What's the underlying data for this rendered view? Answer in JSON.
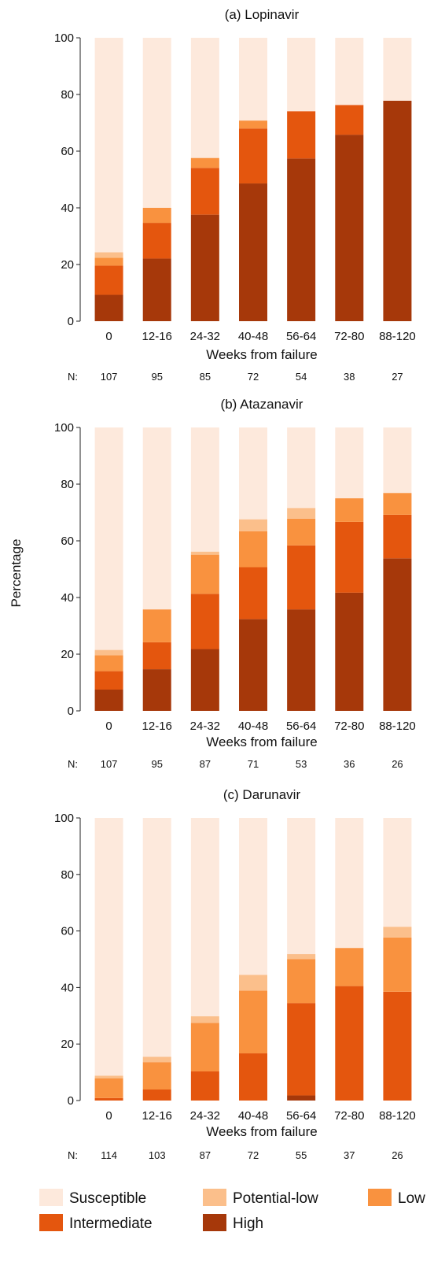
{
  "colors": {
    "Susceptible": "#fde9dc",
    "Potential-low": "#fbbf8b",
    "Low": "#f9923f",
    "Intermediate": "#e4560e",
    "High": "#a6380a"
  },
  "ylabel": "Percentage",
  "legend": [
    "Susceptible",
    "Potential-low",
    "Low",
    "Intermediate",
    "High"
  ],
  "chart_data": [
    {
      "type": "bar",
      "stacked": true,
      "title": "(a) Lopinavir",
      "xlabel": "Weeks from failure",
      "ylabel": "Percentage",
      "ylim": [
        0,
        100
      ],
      "yticks": [
        0,
        20,
        40,
        60,
        80,
        100
      ],
      "categories": [
        "0",
        "12-16",
        "24-32",
        "40-48",
        "56-64",
        "72-80",
        "88-120"
      ],
      "n_label": "N:",
      "n": [
        107,
        95,
        85,
        72,
        54,
        38,
        27
      ],
      "series": [
        {
          "name": "High",
          "values": [
            9.3,
            22.1,
            37.6,
            48.6,
            57.4,
            65.8,
            77.8
          ]
        },
        {
          "name": "Intermediate",
          "values": [
            10.3,
            12.6,
            16.5,
            19.4,
            16.7,
            10.5,
            0
          ]
        },
        {
          "name": "Low",
          "values": [
            2.8,
            5.3,
            3.5,
            2.8,
            0,
            0,
            0
          ]
        },
        {
          "name": "Potential-low",
          "values": [
            1.9,
            0,
            0,
            0,
            0,
            0,
            0
          ]
        },
        {
          "name": "Susceptible",
          "values": [
            75.7,
            60.0,
            42.4,
            29.2,
            25.9,
            23.7,
            22.2
          ]
        }
      ]
    },
    {
      "type": "bar",
      "stacked": true,
      "title": "(b) Atazanavir",
      "xlabel": "Weeks from failure",
      "ylabel": "Percentage",
      "ylim": [
        0,
        100
      ],
      "yticks": [
        0,
        20,
        40,
        60,
        80,
        100
      ],
      "categories": [
        "0",
        "12-16",
        "24-32",
        "40-48",
        "56-64",
        "72-80",
        "88-120"
      ],
      "n_label": "N:",
      "n": [
        107,
        95,
        87,
        71,
        53,
        36,
        26
      ],
      "series": [
        {
          "name": "High",
          "values": [
            7.5,
            14.7,
            21.8,
            32.4,
            35.8,
            41.7,
            53.8
          ]
        },
        {
          "name": "Intermediate",
          "values": [
            6.5,
            9.5,
            19.5,
            18.3,
            22.6,
            25.0,
            15.4
          ]
        },
        {
          "name": "Low",
          "values": [
            5.6,
            11.6,
            13.8,
            12.7,
            9.4,
            8.3,
            7.7
          ]
        },
        {
          "name": "Potential-low",
          "values": [
            1.9,
            0,
            1.1,
            4.2,
            3.8,
            0,
            0
          ]
        },
        {
          "name": "Susceptible",
          "values": [
            78.5,
            64.2,
            43.8,
            32.4,
            28.4,
            25.0,
            23.1
          ]
        }
      ]
    },
    {
      "type": "bar",
      "stacked": true,
      "title": "(c) Darunavir",
      "xlabel": "Weeks from failure",
      "ylabel": "Percentage",
      "ylim": [
        0,
        100
      ],
      "yticks": [
        0,
        20,
        40,
        60,
        80,
        100
      ],
      "categories": [
        "0",
        "12-16",
        "24-32",
        "40-48",
        "56-64",
        "72-80",
        "88-120"
      ],
      "n_label": "N:",
      "n": [
        114,
        103,
        87,
        72,
        55,
        37,
        26
      ],
      "series": [
        {
          "name": "High",
          "values": [
            0,
            0,
            0,
            0,
            1.8,
            0,
            0
          ]
        },
        {
          "name": "Intermediate",
          "values": [
            0.9,
            3.9,
            10.3,
            16.7,
            32.7,
            40.5,
            38.5
          ]
        },
        {
          "name": "Low",
          "values": [
            7.0,
            9.7,
            17.2,
            22.2,
            15.5,
            13.5,
            19.2
          ]
        },
        {
          "name": "Potential-low",
          "values": [
            0.9,
            1.9,
            2.3,
            5.6,
            1.8,
            0,
            3.8
          ]
        },
        {
          "name": "Susceptible",
          "values": [
            91.2,
            84.5,
            70.2,
            55.5,
            48.2,
            46.0,
            38.5
          ]
        }
      ]
    }
  ]
}
